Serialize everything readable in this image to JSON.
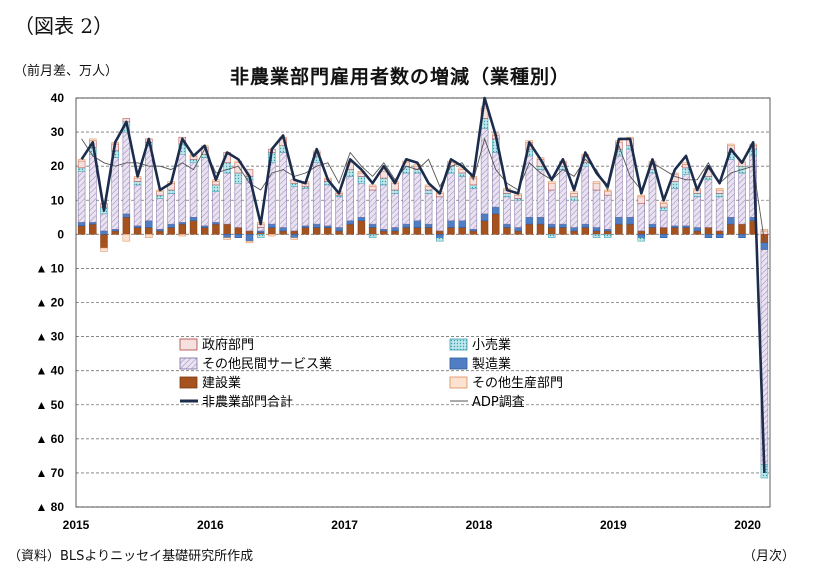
{
  "figure_label": "（図表 2）",
  "unit_label": "（前月差、万人）",
  "source_label": "（資料）BLSよりニッセイ基礎研究所作成",
  "month_unit": "（月次）",
  "colors": {
    "government": "#f4e1df",
    "retail": "#9fd9e0",
    "other_services": "#d9cfe6",
    "manufacturing": "#4f7ec4",
    "construction": "#a6521f",
    "other_production": "#fde3cf",
    "nfp_line": "#1c2c4c",
    "adp_line": "#555555"
  },
  "chart_data": {
    "type": "bar",
    "title": "非農業部門雇用者数の増減（業種別）",
    "ylim": [
      -80,
      40
    ],
    "yticks": [
      {
        "v": 40,
        "label": "40"
      },
      {
        "v": 30,
        "label": "30"
      },
      {
        "v": 20,
        "label": "20"
      },
      {
        "v": 10,
        "label": "10"
      },
      {
        "v": 0,
        "label": "0"
      },
      {
        "v": -10,
        "label": "▲ 10"
      },
      {
        "v": -20,
        "label": "▲ 20"
      },
      {
        "v": -30,
        "label": "▲ 30"
      },
      {
        "v": -40,
        "label": "▲ 40"
      },
      {
        "v": -50,
        "label": "▲ 50"
      },
      {
        "v": -60,
        "label": "▲ 60"
      },
      {
        "v": -70,
        "label": "▲ 70"
      },
      {
        "v": -80,
        "label": "▲ 80"
      }
    ],
    "xticks": [
      {
        "index": 0,
        "label": "2015"
      },
      {
        "index": 12,
        "label": "2016"
      },
      {
        "index": 24,
        "label": "2017"
      },
      {
        "index": 36,
        "label": "2018"
      },
      {
        "index": 48,
        "label": "2019"
      },
      {
        "index": 60,
        "label": "2020"
      }
    ],
    "legend": [
      {
        "key": "government",
        "label": "政府部門",
        "kind": "box"
      },
      {
        "key": "retail",
        "label": "小売業",
        "kind": "box"
      },
      {
        "key": "other_services",
        "label": "その他民間サービス業",
        "kind": "box"
      },
      {
        "key": "manufacturing",
        "label": "製造業",
        "kind": "box"
      },
      {
        "key": "construction",
        "label": "建設業",
        "kind": "box"
      },
      {
        "key": "other_production",
        "label": "その他生産部門",
        "kind": "box"
      },
      {
        "key": "nfp_line",
        "label": "非農業部門合計",
        "kind": "thick-line"
      },
      {
        "key": "adp_line",
        "label": "ADP調査",
        "kind": "thin-line"
      }
    ],
    "nfp_total": [
      22,
      27,
      7,
      27,
      33,
      17,
      28,
      13,
      15,
      28,
      23,
      26,
      16,
      24,
      22,
      17,
      3,
      25,
      29,
      16,
      15,
      25,
      16,
      12,
      22,
      19,
      15,
      20,
      15,
      22,
      21,
      15,
      12,
      22,
      20,
      17,
      40,
      29,
      13,
      12,
      27,
      22,
      16,
      22,
      13,
      24,
      18,
      14,
      28,
      28,
      12,
      22,
      10,
      19,
      23,
      13,
      20,
      15,
      25,
      21,
      27,
      -70
    ],
    "adp": [
      28,
      23,
      21,
      20,
      21,
      21,
      20,
      20,
      19,
      21,
      19,
      25,
      18,
      19,
      20,
      15,
      13,
      18,
      19,
      17,
      18,
      20,
      21,
      15,
      24,
      20,
      17,
      21,
      16,
      20,
      19,
      22,
      14,
      20,
      21,
      16,
      28,
      19,
      15,
      13,
      21,
      18,
      16,
      19,
      17,
      22,
      19,
      13,
      26,
      17,
      13,
      21,
      19,
      17,
      16,
      16,
      21,
      15,
      18,
      19,
      20,
      -2
    ],
    "series": [
      {
        "key": "construction",
        "values": [
          2.5,
          3,
          -4,
          1,
          5,
          2,
          2,
          1,
          2,
          3,
          4,
          2,
          3,
          3,
          2,
          1,
          0.5,
          2,
          1,
          1,
          2,
          2,
          2,
          1,
          3,
          4,
          2,
          1,
          1,
          2,
          2,
          2,
          1,
          2,
          2,
          1,
          4,
          6,
          2,
          1,
          3,
          3,
          2,
          2,
          1,
          2,
          1,
          1,
          3,
          3,
          1,
          2,
          2,
          2,
          2,
          1,
          2,
          1,
          3,
          3,
          4,
          -2.5
        ]
      },
      {
        "key": "manufacturing",
        "values": [
          1,
          0.5,
          1,
          0.5,
          1,
          0.5,
          2,
          0.5,
          1,
          0.5,
          1,
          0.5,
          0.5,
          -1,
          -1,
          -2,
          0.5,
          1,
          1,
          -1,
          0.5,
          1,
          0.5,
          1,
          1,
          1,
          1,
          0.5,
          1,
          1,
          2,
          1,
          -1,
          2,
          2,
          0.5,
          2,
          2,
          1,
          1,
          2,
          2,
          1,
          1,
          1,
          1,
          1,
          0.5,
          2,
          2,
          -1,
          1,
          -1,
          0.5,
          0.5,
          1,
          -1,
          -1,
          2,
          -1,
          1,
          -2
        ]
      },
      {
        "key": "other_services",
        "values": [
          15,
          20,
          5,
          21,
          24,
          12,
          22,
          9,
          9,
          20,
          16,
          20,
          9,
          15,
          13,
          15,
          1,
          18,
          22,
          13,
          11,
          18,
          12,
          9,
          13,
          10,
          10,
          13,
          10,
          15,
          14,
          9,
          10,
          14,
          13,
          12,
          25,
          16,
          8,
          8,
          18,
          14,
          10,
          16,
          8,
          17,
          11,
          10,
          18,
          20,
          8,
          15,
          5,
          11,
          15,
          9,
          14,
          10,
          17,
          15,
          18,
          -63
        ]
      },
      {
        "key": "retail",
        "values": [
          1,
          2,
          2,
          2,
          3,
          1,
          1,
          1,
          1,
          3,
          1,
          1,
          2,
          3,
          3,
          1,
          -1,
          3,
          2,
          1,
          0.5,
          2,
          1,
          0.5,
          2,
          2,
          -1,
          2,
          1,
          2,
          1,
          1,
          -1,
          2,
          1,
          1,
          3,
          4,
          1,
          0.5,
          2,
          1,
          -1,
          1,
          1,
          1,
          -1,
          -1,
          2,
          1,
          -1,
          1,
          1,
          2,
          2,
          1,
          1,
          1,
          2,
          2,
          2,
          -4
        ]
      },
      {
        "key": "government",
        "values": [
          2,
          2,
          1,
          2,
          1,
          1,
          1,
          1,
          2,
          2,
          1,
          2,
          1,
          3,
          3,
          2,
          1,
          1,
          2,
          1,
          1,
          1,
          0.5,
          0.5,
          2,
          1,
          1,
          2,
          2,
          1,
          1,
          1,
          1,
          1,
          1,
          2,
          3,
          1,
          1,
          1,
          2,
          2,
          2,
          1,
          1,
          2,
          2,
          1,
          2,
          2,
          2,
          2,
          1,
          2,
          1,
          1,
          2,
          1,
          2,
          1,
          1,
          1
        ]
      },
      {
        "key": "other_production",
        "values": [
          0.5,
          0.5,
          -1,
          0.5,
          -2,
          0.5,
          -1,
          0.5,
          0.5,
          -0.5,
          0.5,
          0.5,
          0.5,
          -0.5,
          0.5,
          -0.5,
          0.5,
          -0.5,
          0.5,
          -0.5,
          0.5,
          0.5,
          0.5,
          0.5,
          0.5,
          0.5,
          0.5,
          0.5,
          0.5,
          0.5,
          0.5,
          0.5,
          0.5,
          0.5,
          0.5,
          0.5,
          0.5,
          0.5,
          0.5,
          0.5,
          0.5,
          0.5,
          0.5,
          0.5,
          0.5,
          0.5,
          0.5,
          0.5,
          0.5,
          0.5,
          0.5,
          0.5,
          0.5,
          0.5,
          0.5,
          0.5,
          0.5,
          0.5,
          0.5,
          0.5,
          0.5,
          0.5
        ]
      }
    ]
  }
}
